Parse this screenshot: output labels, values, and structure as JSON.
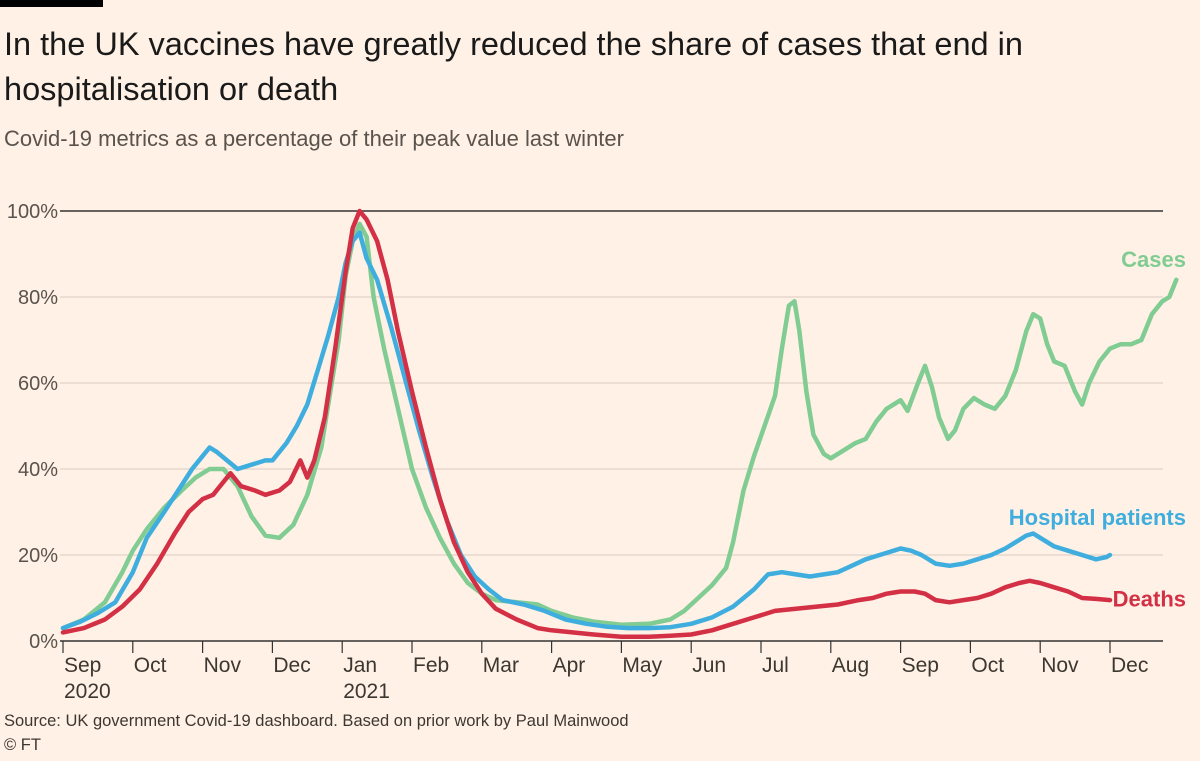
{
  "header": {
    "title": "In the UK vaccines have greatly reduced the share of cases that end in hospitalisation or death",
    "subtitle": "Covid-19 metrics as a percentage of their peak value last winter"
  },
  "footer": {
    "source": "Source: UK government Covid-19 dashboard. Based on prior work by Paul Mainwood",
    "copyright": "© FT"
  },
  "colors": {
    "cases": "#80CC93",
    "hospital": "#3FAEDE",
    "deaths": "#D32F45",
    "grid": "#D9CCC1",
    "baseline": "#333333"
  },
  "chart_data": {
    "type": "line",
    "title": "In the UK vaccines have greatly reduced the share of cases that end in hospitalisation or death",
    "subtitle": "Covid-19 metrics as a percentage of their peak value last winter",
    "xlabel": "",
    "ylabel": "",
    "x_unit": "months since 1 Sep 2020",
    "xlim": [
      0,
      15.3
    ],
    "ylim": [
      0,
      100
    ],
    "y_ticks": [
      0,
      20,
      40,
      60,
      80,
      100
    ],
    "y_tick_labels": [
      "0%",
      "20%",
      "40%",
      "60%",
      "80%",
      "100%"
    ],
    "x_ticks": [
      {
        "x": 0,
        "label": "Sep",
        "year": "2020"
      },
      {
        "x": 1,
        "label": "Oct"
      },
      {
        "x": 2,
        "label": "Nov"
      },
      {
        "x": 3,
        "label": "Dec"
      },
      {
        "x": 4,
        "label": "Jan",
        "year": "2021"
      },
      {
        "x": 5,
        "label": "Feb"
      },
      {
        "x": 6,
        "label": "Mar"
      },
      {
        "x": 7,
        "label": "Apr"
      },
      {
        "x": 8,
        "label": "May"
      },
      {
        "x": 9,
        "label": "Jun"
      },
      {
        "x": 10,
        "label": "Jul"
      },
      {
        "x": 11,
        "label": "Aug"
      },
      {
        "x": 12,
        "label": "Sep"
      },
      {
        "x": 13,
        "label": "Oct"
      },
      {
        "x": 14,
        "label": "Nov"
      },
      {
        "x": 15,
        "label": "Dec"
      }
    ],
    "series": [
      {
        "name": "Cases",
        "color": "#80CC93",
        "points": [
          [
            0,
            3
          ],
          [
            0.3,
            5
          ],
          [
            0.6,
            9
          ],
          [
            0.85,
            16
          ],
          [
            1.0,
            21
          ],
          [
            1.2,
            26
          ],
          [
            1.45,
            31
          ],
          [
            1.7,
            35
          ],
          [
            1.9,
            38
          ],
          [
            2.1,
            40
          ],
          [
            2.3,
            40
          ],
          [
            2.5,
            36
          ],
          [
            2.7,
            29
          ],
          [
            2.9,
            24.5
          ],
          [
            3.1,
            24
          ],
          [
            3.3,
            27
          ],
          [
            3.5,
            34
          ],
          [
            3.7,
            45
          ],
          [
            3.85,
            60
          ],
          [
            3.95,
            70
          ],
          [
            4.05,
            85
          ],
          [
            4.15,
            93
          ],
          [
            4.25,
            97
          ],
          [
            4.35,
            94
          ],
          [
            4.45,
            80
          ],
          [
            4.6,
            68
          ],
          [
            4.8,
            54
          ],
          [
            5.0,
            40
          ],
          [
            5.2,
            31
          ],
          [
            5.4,
            24
          ],
          [
            5.6,
            18
          ],
          [
            5.8,
            13.5
          ],
          [
            6.0,
            11
          ],
          [
            6.2,
            9.5
          ],
          [
            6.5,
            9
          ],
          [
            6.8,
            8.5
          ],
          [
            7.0,
            7
          ],
          [
            7.3,
            5.5
          ],
          [
            7.6,
            4.5
          ],
          [
            8.0,
            3.8
          ],
          [
            8.4,
            4
          ],
          [
            8.7,
            5
          ],
          [
            8.9,
            7
          ],
          [
            9.1,
            10
          ],
          [
            9.3,
            13
          ],
          [
            9.5,
            17
          ],
          [
            9.6,
            23
          ],
          [
            9.75,
            35
          ],
          [
            9.9,
            43
          ],
          [
            10.05,
            50
          ],
          [
            10.2,
            57
          ],
          [
            10.3,
            68
          ],
          [
            10.4,
            78
          ],
          [
            10.48,
            79
          ],
          [
            10.55,
            72
          ],
          [
            10.65,
            58
          ],
          [
            10.75,
            48
          ],
          [
            10.9,
            43.5
          ],
          [
            11.0,
            42.5
          ],
          [
            11.15,
            44
          ],
          [
            11.35,
            46
          ],
          [
            11.5,
            47
          ],
          [
            11.65,
            51
          ],
          [
            11.8,
            54
          ],
          [
            12.0,
            56
          ],
          [
            12.1,
            53.5
          ],
          [
            12.25,
            60
          ],
          [
            12.35,
            64
          ],
          [
            12.45,
            59
          ],
          [
            12.55,
            52
          ],
          [
            12.68,
            47
          ],
          [
            12.78,
            49
          ],
          [
            12.9,
            54
          ],
          [
            13.05,
            56.5
          ],
          [
            13.2,
            55
          ],
          [
            13.35,
            54
          ],
          [
            13.5,
            57
          ],
          [
            13.65,
            63
          ],
          [
            13.8,
            72
          ],
          [
            13.9,
            76
          ],
          [
            14.0,
            75
          ],
          [
            14.1,
            69
          ],
          [
            14.2,
            65
          ],
          [
            14.35,
            64
          ],
          [
            14.5,
            58
          ],
          [
            14.6,
            55
          ],
          [
            14.7,
            60
          ],
          [
            14.85,
            65
          ],
          [
            15.0,
            68
          ],
          [
            15.15,
            69
          ],
          [
            15.3,
            69
          ],
          [
            15.45,
            70
          ],
          [
            15.6,
            76
          ],
          [
            15.75,
            79
          ],
          [
            15.85,
            80
          ],
          [
            15.95,
            84
          ]
        ]
      },
      {
        "name": "Hospital patients",
        "color": "#3FAEDE",
        "points": [
          [
            0,
            3
          ],
          [
            0.25,
            4.5
          ],
          [
            0.5,
            6.5
          ],
          [
            0.75,
            9
          ],
          [
            1.0,
            16
          ],
          [
            1.2,
            24
          ],
          [
            1.45,
            30
          ],
          [
            1.65,
            35
          ],
          [
            1.85,
            40
          ],
          [
            2.0,
            43
          ],
          [
            2.1,
            45
          ],
          [
            2.2,
            44
          ],
          [
            2.35,
            42
          ],
          [
            2.5,
            40
          ],
          [
            2.7,
            41
          ],
          [
            2.9,
            42
          ],
          [
            3.0,
            42
          ],
          [
            3.2,
            46
          ],
          [
            3.35,
            50
          ],
          [
            3.5,
            55
          ],
          [
            3.65,
            63
          ],
          [
            3.8,
            71
          ],
          [
            3.95,
            80
          ],
          [
            4.05,
            88
          ],
          [
            4.15,
            93
          ],
          [
            4.25,
            95
          ],
          [
            4.35,
            89
          ],
          [
            4.5,
            84
          ],
          [
            4.7,
            73
          ],
          [
            4.9,
            61
          ],
          [
            5.1,
            49
          ],
          [
            5.3,
            38
          ],
          [
            5.5,
            28
          ],
          [
            5.7,
            20
          ],
          [
            5.9,
            15
          ],
          [
            6.1,
            12
          ],
          [
            6.3,
            9.5
          ],
          [
            6.6,
            8.5
          ],
          [
            6.9,
            7
          ],
          [
            7.2,
            5
          ],
          [
            7.5,
            4
          ],
          [
            7.8,
            3.3
          ],
          [
            8.1,
            3
          ],
          [
            8.4,
            3
          ],
          [
            8.7,
            3.2
          ],
          [
            9.0,
            4
          ],
          [
            9.3,
            5.5
          ],
          [
            9.6,
            8
          ],
          [
            9.9,
            12
          ],
          [
            10.1,
            15.5
          ],
          [
            10.3,
            16
          ],
          [
            10.5,
            15.5
          ],
          [
            10.7,
            15
          ],
          [
            10.9,
            15.5
          ],
          [
            11.1,
            16
          ],
          [
            11.3,
            17.5
          ],
          [
            11.5,
            19
          ],
          [
            11.7,
            20
          ],
          [
            11.9,
            21
          ],
          [
            12.0,
            21.5
          ],
          [
            12.15,
            21
          ],
          [
            12.3,
            20
          ],
          [
            12.5,
            18
          ],
          [
            12.7,
            17.5
          ],
          [
            12.9,
            18
          ],
          [
            13.1,
            19
          ],
          [
            13.3,
            20
          ],
          [
            13.5,
            21.5
          ],
          [
            13.65,
            23
          ],
          [
            13.8,
            24.5
          ],
          [
            13.9,
            25
          ],
          [
            14.0,
            24
          ],
          [
            14.2,
            22
          ],
          [
            14.4,
            21
          ],
          [
            14.6,
            20
          ],
          [
            14.8,
            19
          ],
          [
            14.95,
            19.5
          ],
          [
            15.0,
            20
          ]
        ]
      },
      {
        "name": "Deaths",
        "color": "#D32F45",
        "points": [
          [
            0,
            2
          ],
          [
            0.3,
            3
          ],
          [
            0.6,
            5
          ],
          [
            0.85,
            8
          ],
          [
            1.1,
            12
          ],
          [
            1.35,
            18
          ],
          [
            1.6,
            25
          ],
          [
            1.8,
            30
          ],
          [
            2.0,
            33
          ],
          [
            2.15,
            34
          ],
          [
            2.3,
            37
          ],
          [
            2.4,
            39
          ],
          [
            2.55,
            36
          ],
          [
            2.75,
            35
          ],
          [
            2.9,
            34
          ],
          [
            3.1,
            35
          ],
          [
            3.25,
            37
          ],
          [
            3.4,
            42
          ],
          [
            3.5,
            38
          ],
          [
            3.6,
            42
          ],
          [
            3.75,
            52
          ],
          [
            3.9,
            68
          ],
          [
            4.05,
            86
          ],
          [
            4.15,
            96
          ],
          [
            4.25,
            100
          ],
          [
            4.35,
            98
          ],
          [
            4.5,
            93
          ],
          [
            4.65,
            84
          ],
          [
            4.8,
            72
          ],
          [
            5.0,
            58
          ],
          [
            5.2,
            45
          ],
          [
            5.4,
            33
          ],
          [
            5.6,
            23
          ],
          [
            5.8,
            16
          ],
          [
            6.0,
            11
          ],
          [
            6.2,
            7.5
          ],
          [
            6.5,
            5
          ],
          [
            6.8,
            3
          ],
          [
            7.0,
            2.5
          ],
          [
            7.3,
            2
          ],
          [
            7.6,
            1.5
          ],
          [
            8.0,
            1
          ],
          [
            8.4,
            1
          ],
          [
            8.7,
            1.2
          ],
          [
            9.0,
            1.5
          ],
          [
            9.3,
            2.5
          ],
          [
            9.6,
            4
          ],
          [
            9.9,
            5.5
          ],
          [
            10.2,
            7
          ],
          [
            10.5,
            7.5
          ],
          [
            10.8,
            8
          ],
          [
            11.1,
            8.5
          ],
          [
            11.4,
            9.5
          ],
          [
            11.6,
            10
          ],
          [
            11.8,
            11
          ],
          [
            12.0,
            11.5
          ],
          [
            12.2,
            11.5
          ],
          [
            12.35,
            11
          ],
          [
            12.5,
            9.5
          ],
          [
            12.7,
            9
          ],
          [
            12.9,
            9.5
          ],
          [
            13.1,
            10
          ],
          [
            13.3,
            11
          ],
          [
            13.5,
            12.5
          ],
          [
            13.7,
            13.5
          ],
          [
            13.85,
            14
          ],
          [
            14.0,
            13.5
          ],
          [
            14.2,
            12.5
          ],
          [
            14.4,
            11.5
          ],
          [
            14.6,
            10
          ],
          [
            14.8,
            9.8
          ],
          [
            15.0,
            9.5
          ]
        ]
      }
    ],
    "series_labels": [
      {
        "name": "Cases",
        "text": "Cases",
        "color": "#80CC93",
        "anchor_x": 15.95,
        "anchor_y": 87
      },
      {
        "name": "Hospital patients",
        "text": "Hospital patients",
        "color": "#3FAEDE",
        "anchor_x": 15.95,
        "anchor_y": 27
      },
      {
        "name": "Deaths",
        "text": "Deaths",
        "color": "#D32F45",
        "anchor_x": 15.95,
        "anchor_y": 8
      }
    ]
  }
}
